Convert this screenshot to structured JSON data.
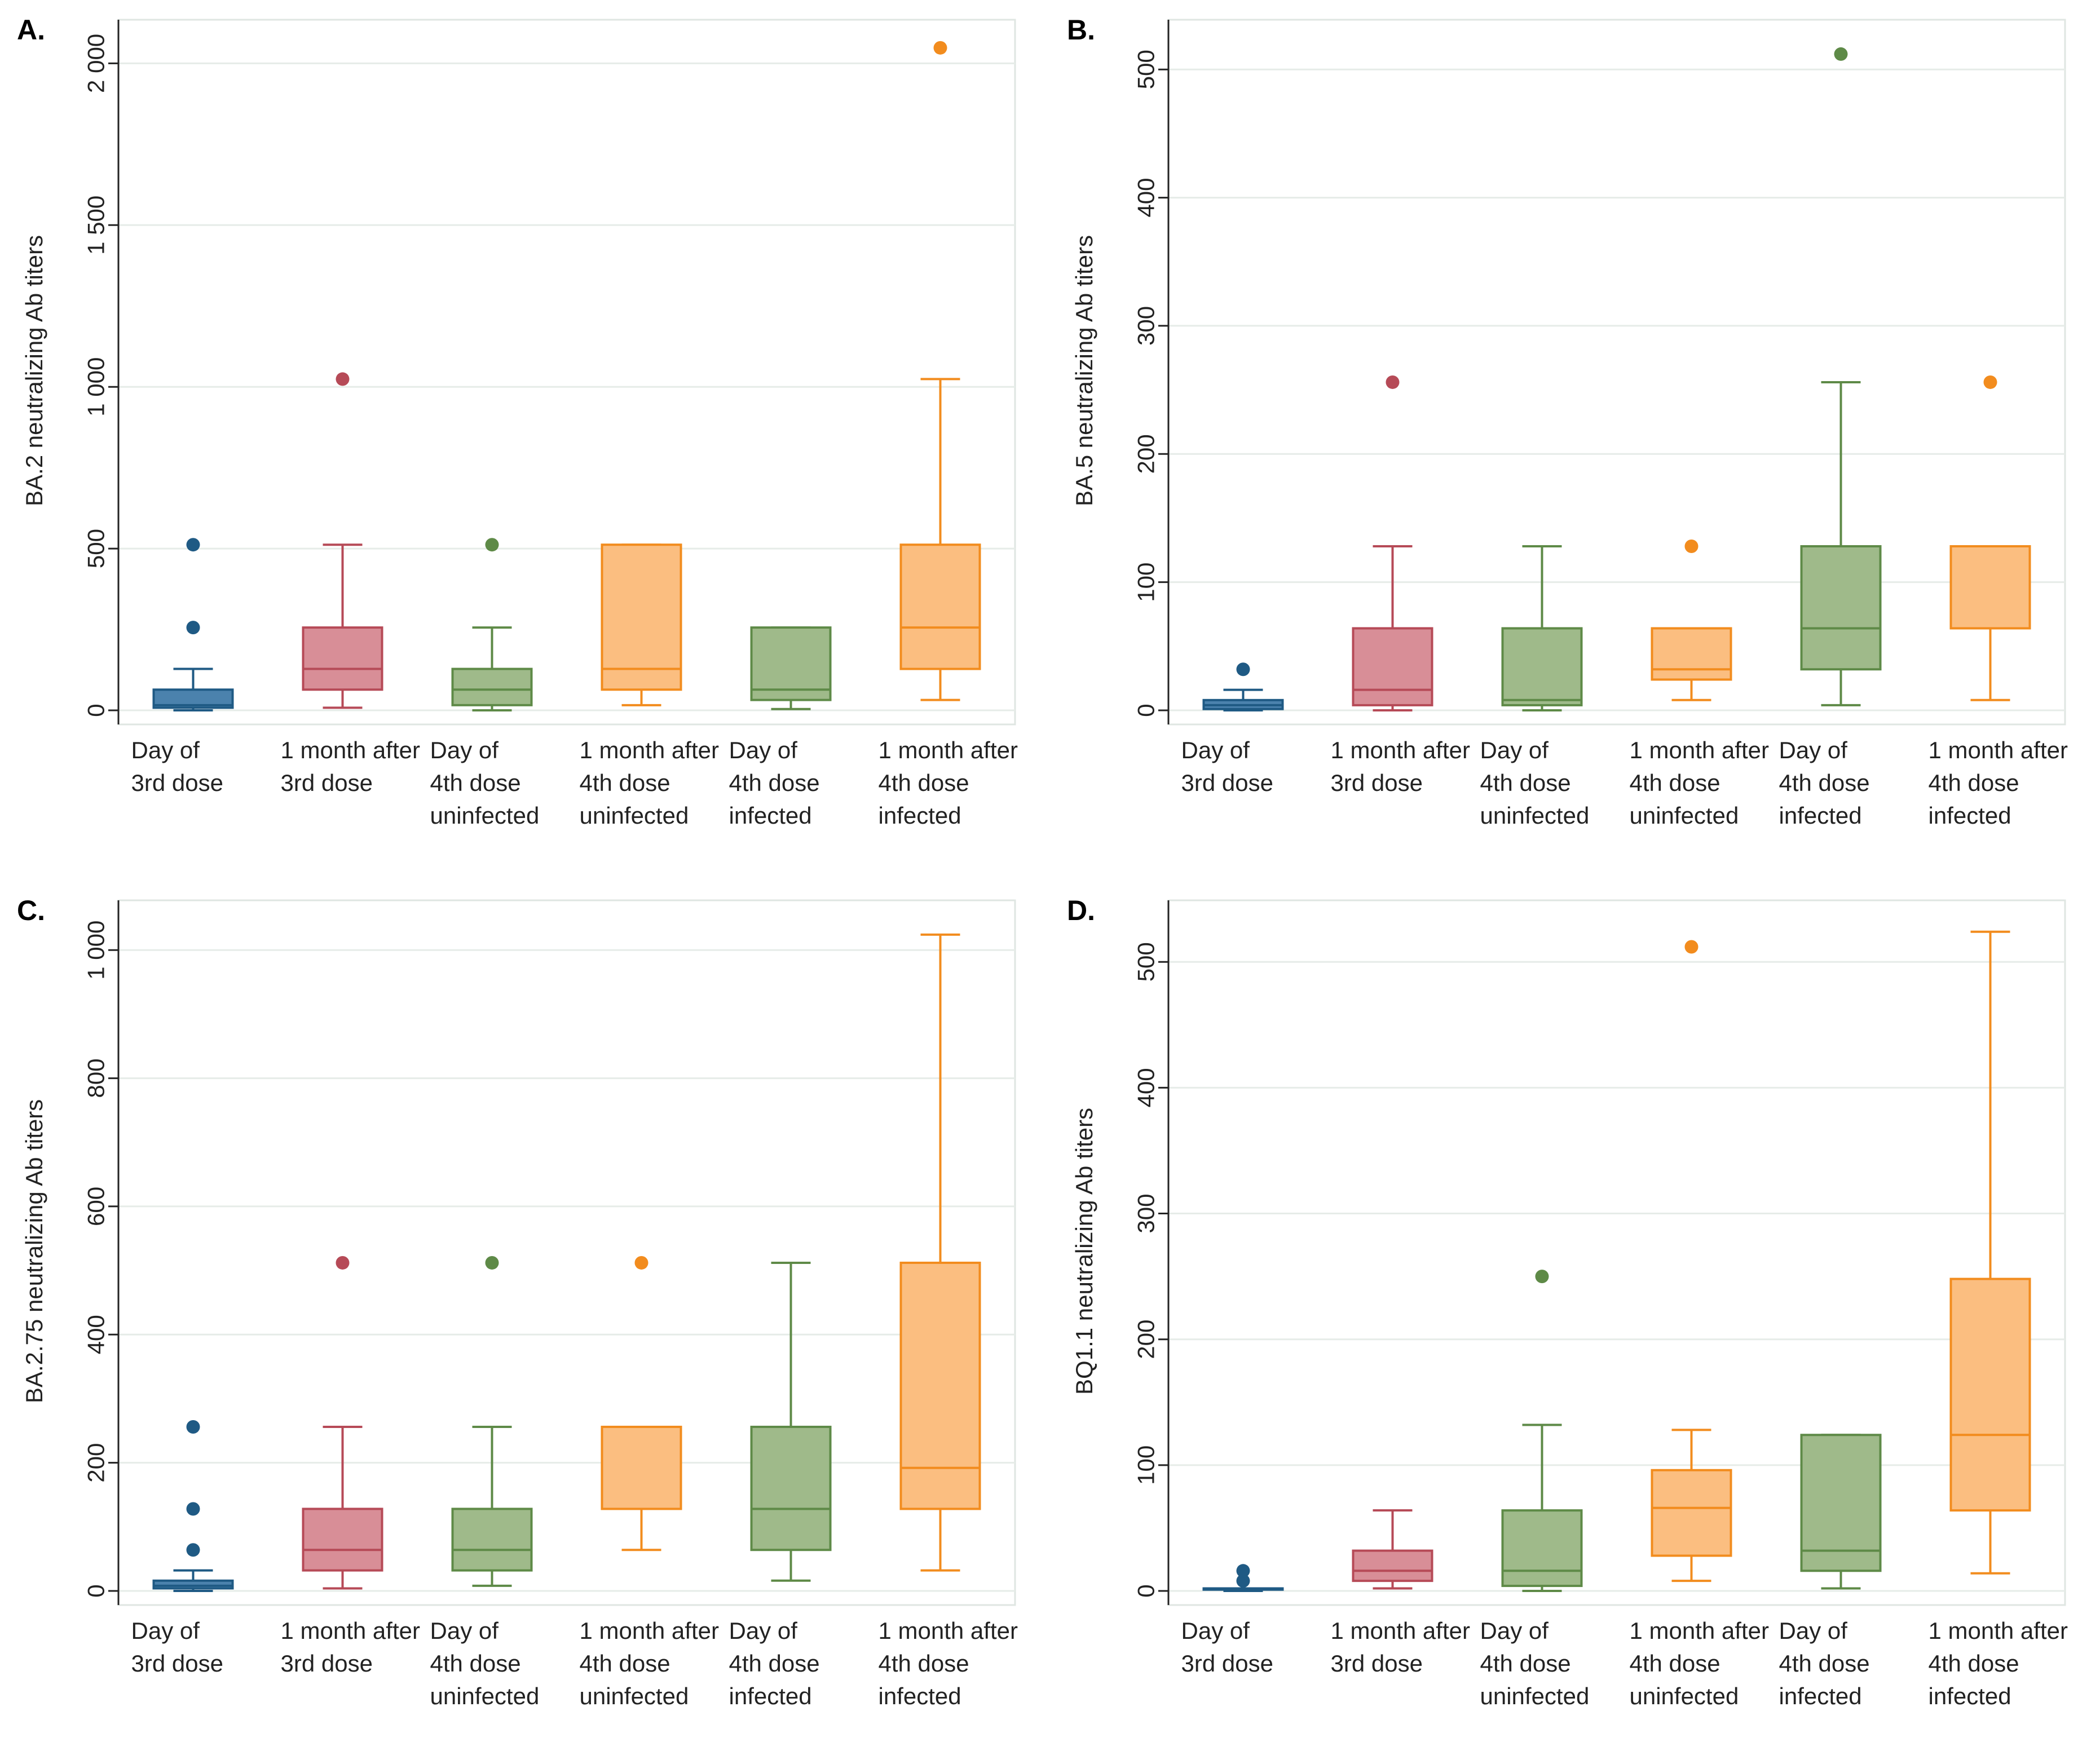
{
  "figure": {
    "background": "#e9efec",
    "colors": {
      "blue": "#1f5a84",
      "blue_fill": "#4b82ad",
      "red": "#b64a57",
      "red_fill": "#d88e97",
      "green": "#5e8a47",
      "green_fill": "#9fba8a",
      "orange": "#f28c1e",
      "orange_fill": "#fbbe80"
    }
  },
  "chart_data": [
    {
      "type": "box",
      "panel": "A.",
      "ylabel": "BA.2 neutralizing Ab titers",
      "ylim": [
        0,
        2100
      ],
      "yticks": [
        0,
        500,
        1000,
        1500,
        2000
      ],
      "ytick_labels": [
        "0",
        "500",
        "1 000",
        "1 500",
        "2 000"
      ],
      "categories": [
        {
          "label": [
            "Day of",
            "3rd dose"
          ],
          "color": "blue",
          "min": 0,
          "q1": 8,
          "median": 16,
          "q3": 64,
          "max": 128,
          "outliers": [
            256,
            512
          ]
        },
        {
          "label": [
            "1 month after",
            "3rd dose"
          ],
          "color": "red",
          "min": 8,
          "q1": 64,
          "median": 128,
          "q3": 256,
          "max": 512,
          "outliers": [
            1024
          ]
        },
        {
          "label": [
            "Day of",
            "4th dose",
            "uninfected"
          ],
          "color": "green",
          "min": 0,
          "q1": 16,
          "median": 64,
          "q3": 128,
          "max": 256,
          "outliers": [
            512
          ]
        },
        {
          "label": [
            "1 month after",
            "4th dose",
            "uninfected"
          ],
          "color": "orange",
          "min": 16,
          "q1": 64,
          "median": 128,
          "q3": 512,
          "max": 512,
          "outliers": []
        },
        {
          "label": [
            "Day of",
            "4th dose",
            "infected"
          ],
          "color": "green",
          "min": 4,
          "q1": 32,
          "median": 64,
          "q3": 256,
          "max": 256,
          "outliers": []
        },
        {
          "label": [
            "1 month after",
            "4th dose",
            "infected"
          ],
          "color": "orange",
          "min": 32,
          "q1": 128,
          "median": 256,
          "q3": 512,
          "max": 1024,
          "outliers": [
            2048
          ]
        }
      ]
    },
    {
      "type": "box",
      "panel": "B.",
      "ylabel": "BA.5 neutralizing Ab titers",
      "ylim": [
        0,
        530
      ],
      "yticks": [
        0,
        100,
        200,
        300,
        400,
        500
      ],
      "ytick_labels": [
        "0",
        "100",
        "200",
        "300",
        "400",
        "500"
      ],
      "categories": [
        {
          "label": [
            "Day of",
            "3rd dose"
          ],
          "color": "blue",
          "min": 0,
          "q1": 1,
          "median": 4,
          "q3": 8,
          "max": 16,
          "outliers": [
            32
          ]
        },
        {
          "label": [
            "1 month after",
            "3rd dose"
          ],
          "color": "red",
          "min": 0,
          "q1": 4,
          "median": 16,
          "q3": 64,
          "max": 128,
          "outliers": [
            256
          ]
        },
        {
          "label": [
            "Day of",
            "4th dose",
            "uninfected"
          ],
          "color": "green",
          "min": 0,
          "q1": 4,
          "median": 8,
          "q3": 64,
          "max": 128,
          "outliers": []
        },
        {
          "label": [
            "1 month after",
            "4th dose",
            "uninfected"
          ],
          "color": "orange",
          "min": 8,
          "q1": 24,
          "median": 32,
          "q3": 64,
          "max": 64,
          "outliers": [
            128
          ]
        },
        {
          "label": [
            "Day of",
            "4th dose",
            "infected"
          ],
          "color": "green",
          "min": 4,
          "q1": 32,
          "median": 64,
          "q3": 128,
          "max": 256,
          "outliers": [
            512
          ]
        },
        {
          "label": [
            "1 month after",
            "4th dose",
            "infected"
          ],
          "color": "orange",
          "min": 8,
          "q1": 64,
          "median": 64,
          "q3": 128,
          "max": 128,
          "outliers": [
            256
          ]
        }
      ]
    },
    {
      "type": "box",
      "panel": "C.",
      "ylabel": "BA.2.75 neutralizing Ab titers",
      "ylim": [
        0,
        1060
      ],
      "yticks": [
        0,
        200,
        400,
        600,
        800,
        1000
      ],
      "ytick_labels": [
        "0",
        "200",
        "400",
        "600",
        "800",
        "1 000"
      ],
      "categories": [
        {
          "label": [
            "Day of",
            "3rd dose"
          ],
          "color": "blue",
          "min": 0,
          "q1": 4,
          "median": 8,
          "q3": 16,
          "max": 32,
          "outliers": [
            64,
            128,
            256
          ]
        },
        {
          "label": [
            "1 month after",
            "3rd dose"
          ],
          "color": "red",
          "min": 4,
          "q1": 32,
          "median": 64,
          "q3": 128,
          "max": 256,
          "outliers": [
            512
          ]
        },
        {
          "label": [
            "Day of",
            "4th dose",
            "uninfected"
          ],
          "color": "green",
          "min": 8,
          "q1": 32,
          "median": 64,
          "q3": 128,
          "max": 256,
          "outliers": [
            512
          ]
        },
        {
          "label": [
            "1 month after",
            "4th dose",
            "uninfected"
          ],
          "color": "orange",
          "min": 64,
          "q1": 128,
          "median": 128,
          "q3": 256,
          "max": 256,
          "outliers": [
            512
          ]
        },
        {
          "label": [
            "Day of",
            "4th dose",
            "infected"
          ],
          "color": "green",
          "min": 16,
          "q1": 64,
          "median": 128,
          "q3": 256,
          "max": 512,
          "outliers": []
        },
        {
          "label": [
            "1 month after",
            "4th dose",
            "infected"
          ],
          "color": "orange",
          "min": 32,
          "q1": 128,
          "median": 192,
          "q3": 512,
          "max": 1024,
          "outliers": []
        }
      ]
    },
    {
      "type": "box",
      "panel": "D.",
      "ylabel": "BQ1.1 neutralizing Ab titers",
      "ylim": [
        0,
        540
      ],
      "yticks": [
        0,
        100,
        200,
        300,
        400,
        500
      ],
      "ytick_labels": [
        "0",
        "100",
        "200",
        "300",
        "400",
        "500"
      ],
      "categories": [
        {
          "label": [
            "Day of",
            "3rd dose"
          ],
          "color": "blue",
          "min": 0,
          "q1": 1,
          "median": 2,
          "q3": 2,
          "max": 2,
          "outliers": [
            8,
            16
          ]
        },
        {
          "label": [
            "1 month after",
            "3rd dose"
          ],
          "color": "red",
          "min": 2,
          "q1": 8,
          "median": 16,
          "q3": 32,
          "max": 64,
          "outliers": []
        },
        {
          "label": [
            "Day of",
            "4th dose",
            "uninfected"
          ],
          "color": "green",
          "min": 0,
          "q1": 4,
          "median": 16,
          "q3": 64,
          "max": 132,
          "outliers": [
            250
          ]
        },
        {
          "label": [
            "1 month after",
            "4th dose",
            "uninfected"
          ],
          "color": "orange",
          "min": 8,
          "q1": 28,
          "median": 66,
          "q3": 96,
          "max": 128,
          "outliers": [
            512
          ]
        },
        {
          "label": [
            "Day of",
            "4th dose",
            "infected"
          ],
          "color": "green",
          "min": 2,
          "q1": 16,
          "median": 32,
          "q3": 124,
          "max": 124,
          "outliers": []
        },
        {
          "label": [
            "1 month after",
            "4th dose",
            "infected"
          ],
          "color": "orange",
          "min": 14,
          "q1": 64,
          "median": 124,
          "q3": 248,
          "max": 524,
          "outliers": []
        }
      ]
    }
  ]
}
